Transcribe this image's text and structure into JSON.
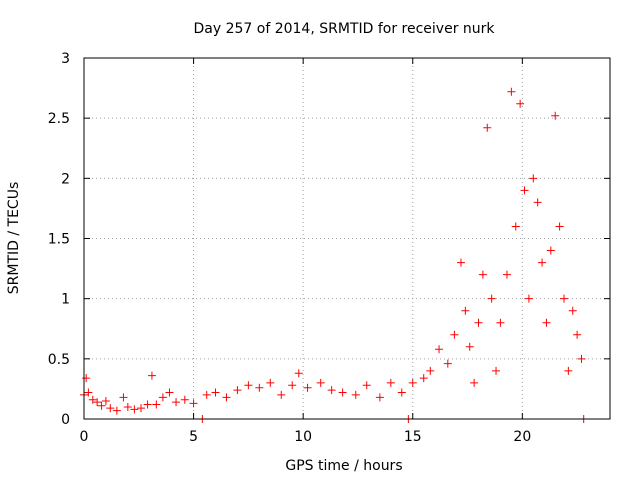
{
  "chart_data": {
    "type": "scatter",
    "title": "Day 257 of 2014, SRMTID for receiver nurk",
    "xlabel": "GPS time / hours",
    "ylabel": "SRMTID / TECUs",
    "xlim": [
      0,
      24
    ],
    "ylim": [
      0,
      3
    ],
    "xticks": [
      0,
      5,
      10,
      15,
      20
    ],
    "xtick_labels": [
      "0",
      "5",
      "10",
      "15",
      "20"
    ],
    "yticks": [
      0,
      0.5,
      1,
      1.5,
      2,
      2.5,
      3
    ],
    "ytick_labels": [
      "0",
      "0.5",
      "1",
      "1.5",
      "2",
      "2.5",
      "3"
    ],
    "grid": true,
    "marker": "+",
    "color": "#ff0000",
    "series": [
      {
        "name": "SRMTID",
        "points": [
          [
            0.0,
            0.2
          ],
          [
            0.1,
            0.34
          ],
          [
            0.2,
            0.22
          ],
          [
            0.4,
            0.16
          ],
          [
            0.6,
            0.14
          ],
          [
            0.8,
            0.11
          ],
          [
            1.0,
            0.15
          ],
          [
            1.2,
            0.09
          ],
          [
            1.5,
            0.07
          ],
          [
            1.8,
            0.18
          ],
          [
            2.0,
            0.1
          ],
          [
            2.3,
            0.08
          ],
          [
            2.6,
            0.09
          ],
          [
            2.9,
            0.12
          ],
          [
            3.1,
            0.36
          ],
          [
            3.3,
            0.12
          ],
          [
            3.6,
            0.18
          ],
          [
            3.9,
            0.22
          ],
          [
            4.2,
            0.14
          ],
          [
            4.6,
            0.16
          ],
          [
            5.0,
            0.13
          ],
          [
            5.4,
            0.0
          ],
          [
            5.6,
            0.2
          ],
          [
            6.0,
            0.22
          ],
          [
            6.5,
            0.18
          ],
          [
            7.0,
            0.24
          ],
          [
            7.5,
            0.28
          ],
          [
            8.0,
            0.26
          ],
          [
            8.5,
            0.3
          ],
          [
            9.0,
            0.2
          ],
          [
            9.5,
            0.28
          ],
          [
            9.8,
            0.38
          ],
          [
            10.2,
            0.26
          ],
          [
            10.8,
            0.3
          ],
          [
            11.3,
            0.24
          ],
          [
            11.8,
            0.22
          ],
          [
            12.4,
            0.2
          ],
          [
            12.9,
            0.28
          ],
          [
            13.5,
            0.18
          ],
          [
            14.0,
            0.3
          ],
          [
            14.5,
            0.22
          ],
          [
            14.8,
            0.0
          ],
          [
            15.0,
            0.3
          ],
          [
            15.5,
            0.34
          ],
          [
            15.8,
            0.4
          ],
          [
            16.2,
            0.58
          ],
          [
            16.6,
            0.46
          ],
          [
            16.9,
            0.7
          ],
          [
            17.2,
            1.3
          ],
          [
            17.4,
            0.9
          ],
          [
            17.6,
            0.6
          ],
          [
            17.8,
            0.3
          ],
          [
            18.0,
            0.8
          ],
          [
            18.2,
            1.2
          ],
          [
            18.4,
            2.42
          ],
          [
            18.6,
            1.0
          ],
          [
            18.8,
            0.4
          ],
          [
            19.0,
            0.8
          ],
          [
            19.3,
            1.2
          ],
          [
            19.5,
            2.72
          ],
          [
            19.7,
            1.6
          ],
          [
            19.9,
            2.62
          ],
          [
            20.1,
            1.9
          ],
          [
            20.3,
            1.0
          ],
          [
            20.5,
            2.0
          ],
          [
            20.7,
            1.8
          ],
          [
            20.9,
            1.3
          ],
          [
            21.1,
            0.8
          ],
          [
            21.3,
            1.4
          ],
          [
            21.5,
            2.52
          ],
          [
            21.7,
            1.6
          ],
          [
            21.9,
            1.0
          ],
          [
            22.1,
            0.4
          ],
          [
            22.3,
            0.9
          ],
          [
            22.5,
            0.7
          ],
          [
            22.7,
            0.5
          ],
          [
            22.8,
            0.0
          ]
        ]
      }
    ]
  }
}
